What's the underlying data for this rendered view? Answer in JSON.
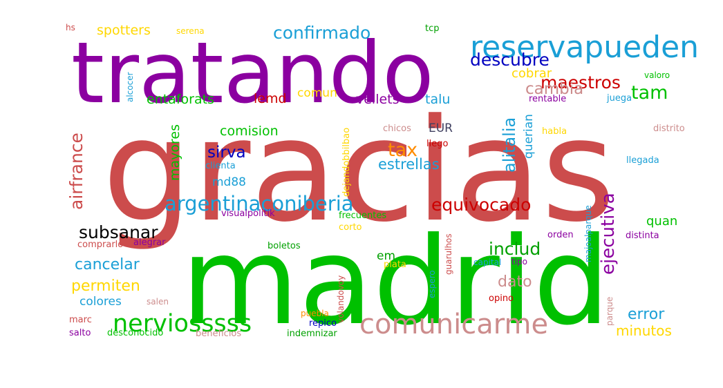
{
  "words": [
    {
      "text": "gracias",
      "color": "#cc4c4c"
    },
    {
      "text": "madrid",
      "color": "#00c000"
    },
    {
      "text": "tratando",
      "color": "#8b00a0"
    },
    {
      "text": "reservapueden",
      "color": "#1a9fd6"
    },
    {
      "text": "comunicarme",
      "color": "#cc8c8c"
    },
    {
      "text": "nerviosssss",
      "color": "#00c000"
    },
    {
      "text": "argentinaconiberia",
      "color": "#1a9fd6"
    },
    {
      "text": "confirmado",
      "color": "#1a9fd6"
    },
    {
      "text": "descubre",
      "color": "#0000c0"
    },
    {
      "text": "maestros",
      "color": "#cc0000"
    },
    {
      "text": "cambia",
      "color": "#cc8c8c"
    },
    {
      "text": "tam",
      "color": "#00c000"
    },
    {
      "text": "airfrance",
      "color": "#cc4c4c"
    },
    {
      "text": "alitalia",
      "color": "#1a9fd6"
    },
    {
      "text": "ejecutiva",
      "color": "#8b00a0"
    },
    {
      "text": "equivocado",
      "color": "#cc0000"
    },
    {
      "text": "subsanar",
      "color": "#000000"
    },
    {
      "text": "cancelar",
      "color": "#1a9fd6"
    },
    {
      "text": "permiten",
      "color": "#ffd700"
    },
    {
      "text": "includ",
      "color": "#00a000"
    },
    {
      "text": "dato",
      "color": "#cc8c8c"
    },
    {
      "text": "error",
      "color": "#1a9fd6"
    },
    {
      "text": "minutos",
      "color": "#ffd700"
    },
    {
      "text": "spotters",
      "color": "#ffd700"
    },
    {
      "text": "serena",
      "color": "#ffd700"
    },
    {
      "text": "hs",
      "color": "#cc4c4c"
    },
    {
      "text": "tcp",
      "color": "#00a000"
    },
    {
      "text": "entaforats",
      "color": "#00c000"
    },
    {
      "text": "lemd",
      "color": "#cc0000"
    },
    {
      "text": "comun",
      "color": "#ffd700"
    },
    {
      "text": "vellets",
      "color": "#8b00a0"
    },
    {
      "text": "talu",
      "color": "#1a9fd6"
    },
    {
      "text": "cobrar",
      "color": "#ffd700"
    },
    {
      "text": "querian",
      "color": "#1a9fd6"
    },
    {
      "text": "alcocer",
      "color": "#1a9fd6"
    },
    {
      "text": "rentable",
      "color": "#8b00a0"
    },
    {
      "text": "juega",
      "color": "#1a9fd6"
    },
    {
      "text": "valoro",
      "color": "#00c000"
    },
    {
      "text": "comision",
      "color": "#00c000"
    },
    {
      "text": "mayores",
      "color": "#00c000"
    },
    {
      "text": "sirva",
      "color": "#0000c0"
    },
    {
      "text": "md88",
      "color": "#1a9fd6"
    },
    {
      "text": "tax",
      "color": "#ff8c00"
    },
    {
      "text": "EUR",
      "color": "#404060"
    },
    {
      "text": "estrellas",
      "color": "#1a9fd6"
    },
    {
      "text": "chicos",
      "color": "#cc8c8c"
    },
    {
      "text": "llego",
      "color": "#cc0000"
    },
    {
      "text": "habla",
      "color": "#ffd700"
    },
    {
      "text": "distrito",
      "color": "#cc8c8c"
    },
    {
      "text": "dejandobbilbao",
      "color": "#ffd700"
    },
    {
      "text": "clienta",
      "color": "#1a9fd6"
    },
    {
      "text": "llegada",
      "color": "#1a9fd6"
    },
    {
      "text": "visualpolitik",
      "color": "#8b00a0"
    },
    {
      "text": "quan",
      "color": "#00c000"
    },
    {
      "text": "distinta",
      "color": "#8b00a0"
    },
    {
      "text": "frecuentes",
      "color": "#00c000"
    },
    {
      "text": "corto",
      "color": "#ffd700"
    },
    {
      "text": "orden",
      "color": "#8b00a0"
    },
    {
      "text": "majoalparque",
      "color": "#1a9fd6"
    },
    {
      "text": "comprarlo",
      "color": "#cc4c4c"
    },
    {
      "text": "alegrar",
      "color": "#8b00a0"
    },
    {
      "text": "boletos",
      "color": "#00a000"
    },
    {
      "text": "em",
      "color": "#00a000"
    },
    {
      "text": "plata",
      "color": "#ffd700"
    },
    {
      "text": "guarulhos",
      "color": "#cc4c4c"
    },
    {
      "text": "capital",
      "color": "#1a9fd6"
    },
    {
      "text": "tipo",
      "color": "#8b00a0"
    },
    {
      "text": "espero",
      "color": "#1a9fd6"
    },
    {
      "text": "volandovoy",
      "color": "#cc4c4c"
    },
    {
      "text": "salen",
      "color": "#cc8c8c"
    },
    {
      "text": "colores",
      "color": "#1a9fd6"
    },
    {
      "text": "opino",
      "color": "#cc0000"
    },
    {
      "text": "parque",
      "color": "#cc8c8c"
    },
    {
      "text": "marc",
      "color": "#cc4c4c"
    },
    {
      "text": "puebla",
      "color": "#ff8c00"
    },
    {
      "text": "repico",
      "color": "#0000c0"
    },
    {
      "text": "salto",
      "color": "#8b00a0"
    },
    {
      "text": "desconocido",
      "color": "#00c000"
    },
    {
      "text": "beneficios",
      "color": "#cc8c8c"
    },
    {
      "text": "indemnizar",
      "color": "#00a000"
    }
  ]
}
